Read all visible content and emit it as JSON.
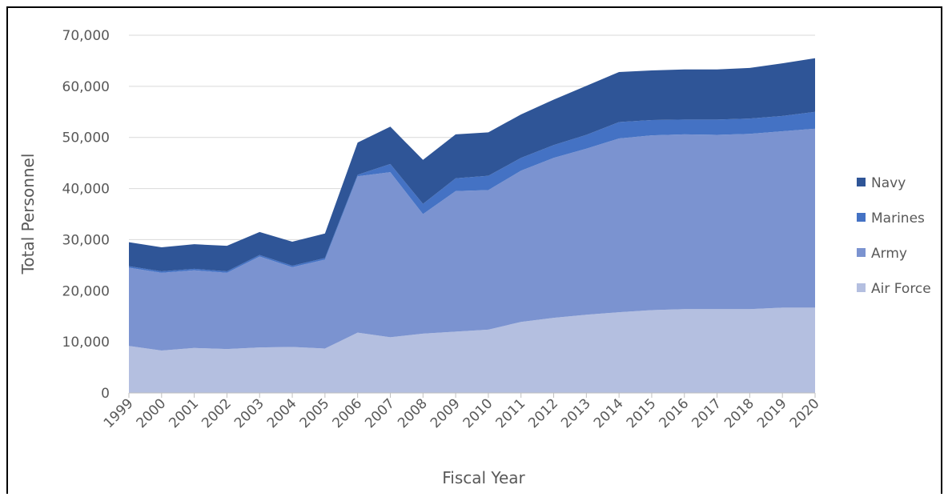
{
  "chart_data": {
    "type": "stacked_area",
    "x_label": "Fiscal Year",
    "y_label": "Total Personnel",
    "x": [
      1999,
      2000,
      2001,
      2002,
      2003,
      2004,
      2005,
      2006,
      2007,
      2008,
      2009,
      2010,
      2011,
      2012,
      2013,
      2014,
      2015,
      2016,
      2017,
      2018,
      2019,
      2020
    ],
    "xlim": [
      1999,
      2020
    ],
    "ylim": [
      0,
      70000
    ],
    "yticks": [
      0,
      {
        "value": 10000,
        "label": "10,000"
      },
      {
        "value": 20000,
        "label": "20,000"
      },
      {
        "value": 30000,
        "label": "30,000"
      },
      {
        "value": 40000,
        "label": "40,000"
      },
      {
        "value": 50000,
        "label": "50,000"
      },
      {
        "value": 60000,
        "label": "60,000"
      },
      {
        "value": 70000,
        "label": "70,000"
      }
    ],
    "grid": true,
    "legend": "right",
    "series": [
      {
        "name": "Navy",
        "color": "#2f5597",
        "values": [
          4700,
          4700,
          4800,
          5000,
          4500,
          4700,
          4800,
          6300,
          7300,
          8600,
          8600,
          8500,
          8500,
          8900,
          9600,
          9800,
          9700,
          9800,
          9800,
          9900,
          10300,
          10500
        ]
      },
      {
        "name": "Marines",
        "color": "#4472c4",
        "values": [
          300,
          300,
          300,
          300,
          300,
          300,
          300,
          300,
          1600,
          2000,
          2500,
          2800,
          2500,
          2500,
          2700,
          3200,
          3000,
          2900,
          3000,
          3000,
          3000,
          3300
        ]
      },
      {
        "name": "Army",
        "color": "#7b93d0",
        "values": [
          15300,
          15200,
          15200,
          14900,
          17800,
          15600,
          17400,
          30600,
          32300,
          23400,
          27500,
          27300,
          29600,
          31300,
          32500,
          34000,
          34200,
          34200,
          34100,
          34300,
          34500,
          35000
        ]
      },
      {
        "name": "Air Force",
        "color": "#b4bfe0",
        "values": [
          9200,
          8300,
          8800,
          8600,
          8900,
          9000,
          8700,
          11800,
          10900,
          11600,
          12000,
          12400,
          13900,
          14700,
          15300,
          15800,
          16200,
          16400,
          16400,
          16400,
          16700,
          16700
        ]
      }
    ]
  }
}
